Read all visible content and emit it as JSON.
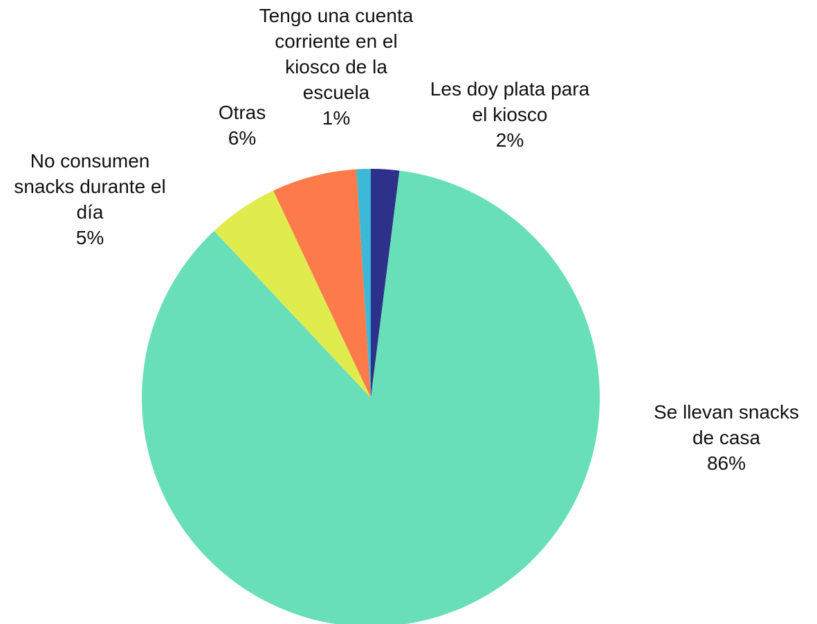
{
  "chart_data": {
    "type": "pie",
    "categories": [
      "Les doy plata para el kiosco",
      "Se llevan snacks de casa",
      "No consumen snacks durante el día",
      "Otras",
      "Tengo una cuenta corriente en el kiosco de la escuela"
    ],
    "values": [
      2,
      86,
      5,
      6,
      1
    ],
    "value_labels": [
      "2%",
      "86%",
      "5%",
      "6%",
      "1%"
    ],
    "colors": [
      "#2e3189",
      "#68dfb9",
      "#e0ec4e",
      "#fd7b4a",
      "#3bb9d6"
    ]
  }
}
